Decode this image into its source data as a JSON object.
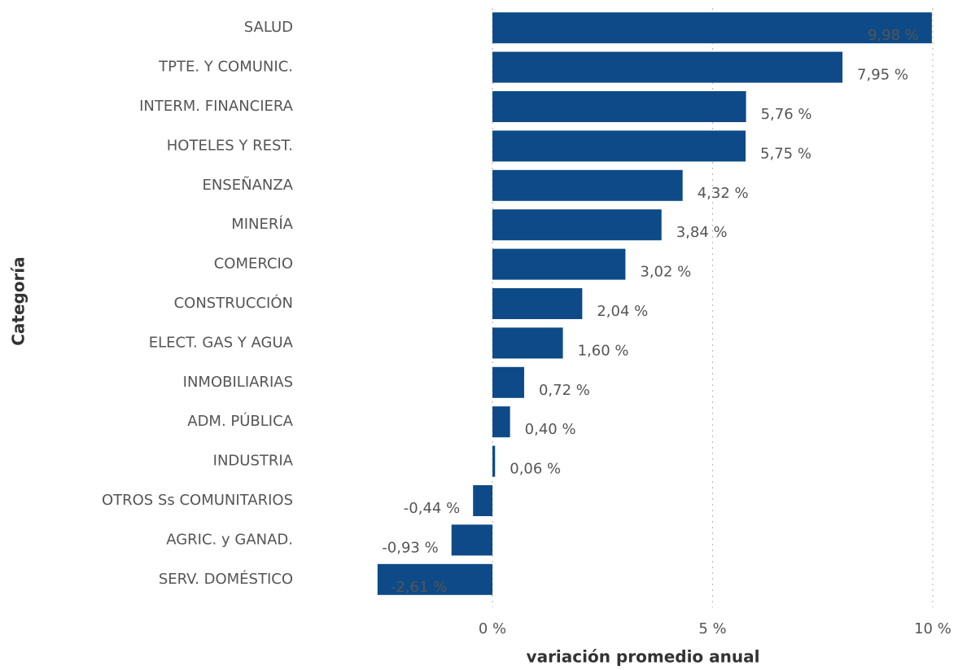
{
  "chart_data": {
    "type": "barh",
    "categories": [
      "SALUD",
      "TPTE. Y COMUNIC.",
      "INTERM. FINANCIERA",
      "HOTELES Y REST.",
      "ENSEÑANZA",
      "MINERÍA",
      "COMERCIO",
      "CONSTRUCCIÓN",
      "ELECT. GAS Y AGUA",
      "INMOBILIARIAS",
      "ADM. PÚBLICA",
      "INDUSTRIA",
      "OTROS Ss COMUNITARIOS",
      "AGRIC. y GANAD.",
      "SERV. DOMÉSTICO"
    ],
    "values": [
      9.98,
      7.95,
      5.76,
      5.75,
      4.32,
      3.84,
      3.02,
      2.04,
      1.6,
      0.72,
      0.4,
      0.06,
      -0.44,
      -0.93,
      -2.61
    ],
    "value_labels": [
      "9,98 %",
      "7,95 %",
      "5,76 %",
      "5,75 %",
      "4,32 %",
      "3,84 %",
      "3,02 %",
      "2,04 %",
      "1,60 %",
      "0,72 %",
      "0,40 %",
      "0,06 %",
      "-0,44 %",
      "-0,93 %",
      "-2,61 %"
    ],
    "color": "#0d4a87",
    "xlabel": "variación promedio anual",
    "ylabel": "Categoría",
    "xlim": [
      -4.4,
      10.5
    ],
    "xticks": [
      {
        "value": 0,
        "label": "0 %"
      },
      {
        "value": 5,
        "label": "5 %"
      },
      {
        "value": 10,
        "label": "10 %"
      }
    ],
    "grid": true
  }
}
